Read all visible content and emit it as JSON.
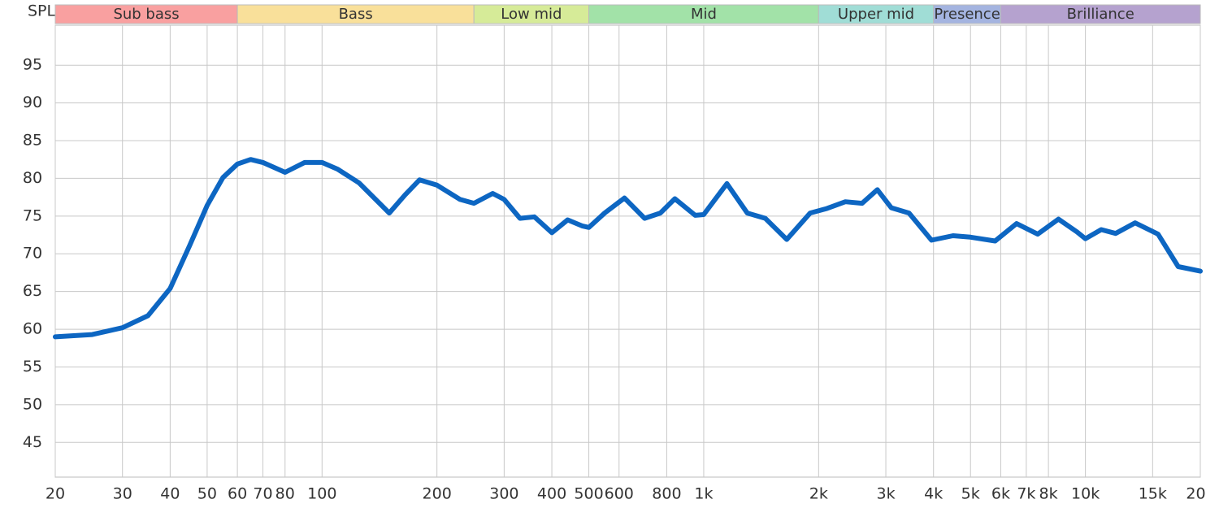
{
  "chart_data": {
    "type": "line",
    "y_label": "SPL",
    "xscale": "log",
    "grid": true,
    "xlim": [
      20,
      20000
    ],
    "ylim": [
      40.4,
      100.3
    ],
    "xticks": [
      20,
      30,
      40,
      50,
      60,
      70,
      80,
      100,
      200,
      300,
      400,
      500,
      600,
      800,
      {
        "value": 1000,
        "label": "1k"
      },
      {
        "value": 2000,
        "label": "2k"
      },
      {
        "value": 3000,
        "label": "3k"
      },
      {
        "value": 4000,
        "label": "4k"
      },
      {
        "value": 5000,
        "label": "5k"
      },
      {
        "value": 6000,
        "label": "6k"
      },
      {
        "value": 7000,
        "label": "7k"
      },
      {
        "value": 8000,
        "label": "8k"
      },
      {
        "value": 10000,
        "label": "10k"
      },
      {
        "value": 15000,
        "label": "15k"
      },
      {
        "value": 20000,
        "label": "20k"
      }
    ],
    "yticks": [
      45,
      50,
      55,
      60,
      65,
      70,
      75,
      80,
      85,
      90,
      95
    ],
    "bands": [
      {
        "name": "Sub bass",
        "from": 20,
        "to": 60,
        "color": "#f9a0a0"
      },
      {
        "name": "Bass",
        "from": 60,
        "to": 250,
        "color": "#f9e09a"
      },
      {
        "name": "Low mid",
        "from": 250,
        "to": 500,
        "color": "#d6eb98"
      },
      {
        "name": "Mid",
        "from": 500,
        "to": 2000,
        "color": "#a2e2a8"
      },
      {
        "name": "Upper mid",
        "from": 2000,
        "to": 4000,
        "color": "#a0ddd6"
      },
      {
        "name": "Presence",
        "from": 4000,
        "to": 6000,
        "color": "#a4b4e0"
      },
      {
        "name": "Brilliance",
        "from": 6000,
        "to": 20000,
        "color": "#b5a2cf"
      }
    ],
    "x": [
      20,
      25,
      30,
      35,
      40,
      45,
      50,
      55,
      60,
      65,
      70,
      80,
      90,
      100,
      110,
      125,
      150,
      165,
      180,
      200,
      230,
      250,
      280,
      300,
      330,
      360,
      400,
      440,
      480,
      500,
      550,
      620,
      700,
      770,
      840,
      950,
      1000,
      1150,
      1300,
      1450,
      1650,
      1900,
      2100,
      2350,
      2600,
      2850,
      3100,
      3450,
      3950,
      4500,
      5000,
      5800,
      6600,
      7500,
      8500,
      9500,
      10000,
      11000,
      12000,
      13500,
      15500,
      17500,
      20000
    ],
    "series": [
      {
        "color": "#0d66c2",
        "values": [
          59.0,
          59.3,
          60.2,
          61.8,
          65.4,
          71.1,
          76.4,
          80.1,
          81.9,
          82.5,
          82.1,
          80.8,
          82.1,
          82.1,
          81.2,
          79.4,
          75.4,
          77.8,
          79.8,
          79.1,
          77.2,
          76.7,
          78.0,
          77.2,
          74.7,
          74.9,
          72.8,
          74.5,
          73.7,
          73.5,
          75.4,
          77.4,
          74.7,
          75.4,
          77.3,
          75.1,
          75.2,
          79.3,
          75.4,
          74.7,
          71.9,
          75.4,
          76.0,
          76.9,
          76.7,
          78.5,
          76.1,
          75.4,
          71.8,
          72.4,
          72.2,
          71.7,
          74.0,
          72.6,
          74.6,
          72.9,
          72.0,
          73.2,
          72.7,
          74.1,
          72.6,
          68.3,
          67.7
        ]
      }
    ]
  }
}
